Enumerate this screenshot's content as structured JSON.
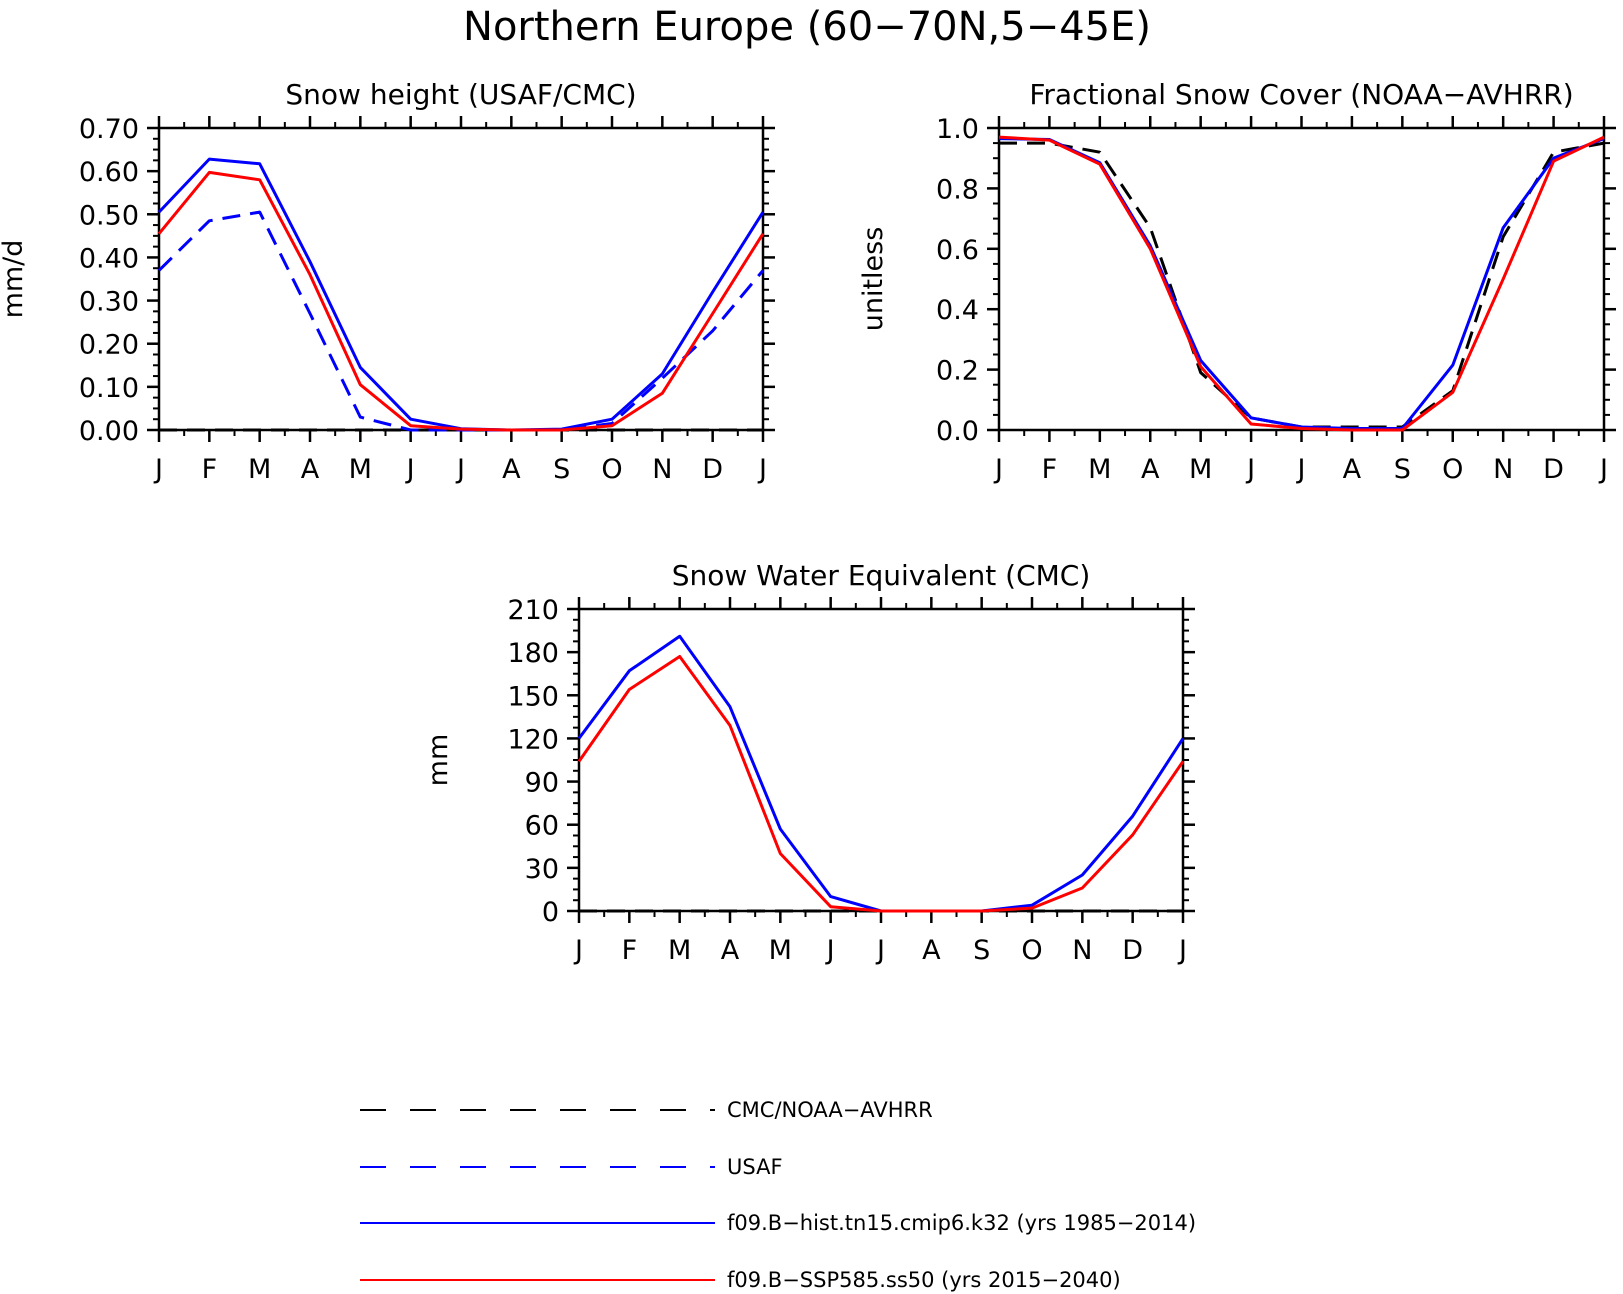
{
  "figure": {
    "title": "Northern Europe (60−70N,5−45E)"
  },
  "colors": {
    "obs": "#000000",
    "usaf": "#0000ff",
    "hist": "#0000ff",
    "ssp": "#ff0000"
  },
  "legend": [
    {
      "key": "obs",
      "label": "CMC/NOAA−AVHRR",
      "style": "dashed"
    },
    {
      "key": "usaf",
      "label": "USAF",
      "style": "dashed"
    },
    {
      "key": "hist",
      "label": "f09.B−hist.tn15.cmip6.k32 (yrs 1985−2014)",
      "style": "solid"
    },
    {
      "key": "ssp",
      "label": "f09.B−SSP585.ss50 (yrs 2015−2040)",
      "style": "solid"
    }
  ],
  "chart_data": [
    {
      "type": "line",
      "title": "Snow height (USAF/CMC)",
      "ylabel": "mm/d",
      "xlabel": "",
      "categories": [
        "J",
        "F",
        "M",
        "A",
        "M",
        "J",
        "J",
        "A",
        "S",
        "O",
        "N",
        "D",
        "J"
      ],
      "ylim": [
        0,
        0.7
      ],
      "yticks": [
        "0.00",
        "0.10",
        "0.20",
        "0.30",
        "0.40",
        "0.50",
        "0.60",
        "0.70"
      ],
      "grid": false,
      "series": [
        {
          "key": "obs",
          "style": "dashed",
          "values": [
            0,
            0,
            0,
            0,
            0,
            0,
            0,
            0,
            0,
            0,
            0,
            0,
            0
          ]
        },
        {
          "key": "usaf",
          "style": "dashed",
          "values": [
            0.37,
            0.485,
            0.505,
            0.27,
            0.03,
            0.0,
            0.0,
            0.0,
            0.0,
            0.015,
            0.12,
            0.23,
            0.37
          ]
        },
        {
          "key": "hist",
          "style": "solid",
          "values": [
            0.505,
            0.628,
            0.617,
            0.39,
            0.145,
            0.025,
            0.003,
            0.0,
            0.002,
            0.025,
            0.13,
            0.32,
            0.505
          ]
        },
        {
          "key": "ssp",
          "style": "solid",
          "values": [
            0.455,
            0.597,
            0.58,
            0.36,
            0.105,
            0.01,
            0.002,
            0.0,
            0.0,
            0.01,
            0.085,
            0.27,
            0.455
          ]
        }
      ]
    },
    {
      "type": "line",
      "title": "Fractional Snow Cover (NOAA−AVHRR)",
      "ylabel": "unitless",
      "xlabel": "",
      "categories": [
        "J",
        "F",
        "M",
        "A",
        "M",
        "J",
        "J",
        "A",
        "S",
        "O",
        "N",
        "D",
        "J"
      ],
      "ylim": [
        0,
        1.0
      ],
      "yticks": [
        "0.0",
        "0.2",
        "0.4",
        "0.6",
        "0.8",
        "1.0"
      ],
      "grid": false,
      "series": [
        {
          "key": "obs",
          "style": "dashed",
          "values": [
            0.95,
            0.95,
            0.92,
            0.67,
            0.19,
            0.04,
            0.01,
            0.01,
            0.01,
            0.13,
            0.64,
            0.92,
            0.95
          ]
        },
        {
          "key": "hist",
          "style": "solid",
          "values": [
            0.965,
            0.962,
            0.885,
            0.61,
            0.23,
            0.04,
            0.01,
            0.005,
            0.005,
            0.215,
            0.67,
            0.9,
            0.965
          ]
        },
        {
          "key": "ssp",
          "style": "solid",
          "values": [
            0.97,
            0.96,
            0.88,
            0.6,
            0.21,
            0.02,
            0.005,
            0.0,
            0.0,
            0.125,
            0.5,
            0.89,
            0.97
          ]
        }
      ]
    },
    {
      "type": "line",
      "title": "Snow Water Equivalent (CMC)",
      "ylabel": "mm",
      "xlabel": "",
      "categories": [
        "J",
        "F",
        "M",
        "A",
        "M",
        "J",
        "J",
        "A",
        "S",
        "O",
        "N",
        "D",
        "J"
      ],
      "ylim": [
        0,
        210
      ],
      "yticks": [
        "0",
        "30",
        "60",
        "90",
        "120",
        "150",
        "180",
        "210"
      ],
      "grid": false,
      "series": [
        {
          "key": "obs",
          "style": "dashed",
          "values": [
            0,
            0,
            0,
            0,
            0,
            0,
            0,
            0,
            0,
            0,
            0,
            0,
            0
          ]
        },
        {
          "key": "hist",
          "style": "solid",
          "values": [
            120,
            167,
            191,
            142,
            57,
            10,
            0,
            0,
            0,
            4,
            25,
            66,
            120
          ]
        },
        {
          "key": "ssp",
          "style": "solid",
          "values": [
            104,
            154,
            177,
            129,
            40,
            3,
            0,
            0,
            0,
            2,
            16,
            53,
            104
          ]
        }
      ]
    }
  ]
}
